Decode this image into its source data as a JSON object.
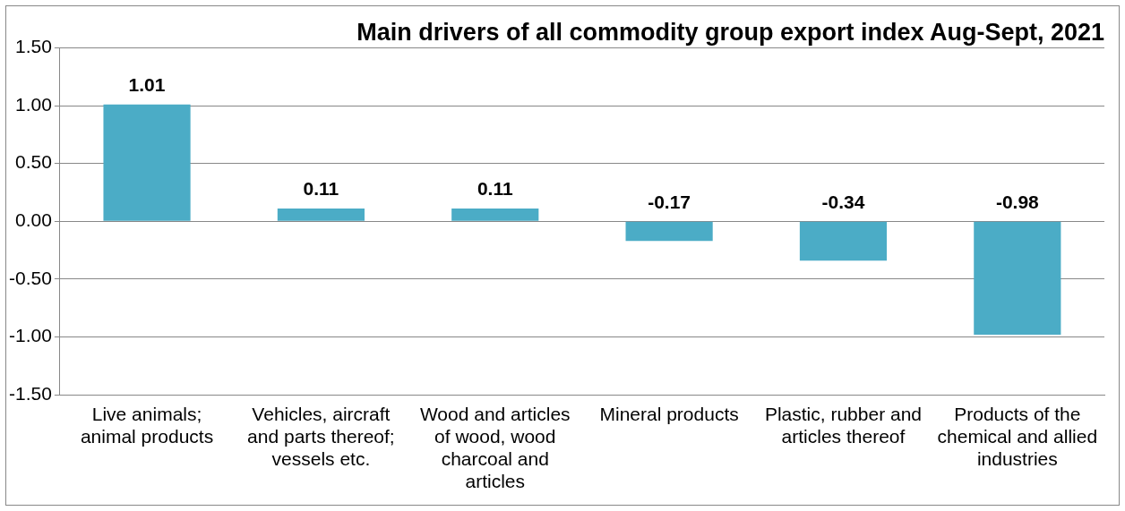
{
  "chart_data": {
    "type": "bar",
    "title": "Main drivers of all commodity group export index Aug-Sept, 2021",
    "categories": [
      "Live animals; animal products",
      "Vehicles, aircraft and parts thereof; vessels etc.",
      "Wood and articles of wood, wood charcoal and articles",
      "Mineral products",
      "Plastic, rubber and articles thereof",
      "Products of the chemical and allied industries"
    ],
    "values": [
      1.01,
      0.11,
      0.11,
      -0.17,
      -0.34,
      -0.98
    ],
    "color": "#4bacc6",
    "ylim": [
      -1.5,
      1.5
    ],
    "yticks": [
      {
        "value": -1.5,
        "label": "-1.50"
      },
      {
        "value": -1.0,
        "label": "-1.00"
      },
      {
        "value": -0.5,
        "label": "-0.50"
      },
      {
        "value": 0,
        "label": "0.00"
      },
      {
        "value": 0.5,
        "label": "0.50"
      },
      {
        "value": 1.0,
        "label": "1.00"
      },
      {
        "value": 1.5,
        "label": "1.50"
      }
    ],
    "grid": "y",
    "data_labels": true,
    "legend": false
  }
}
